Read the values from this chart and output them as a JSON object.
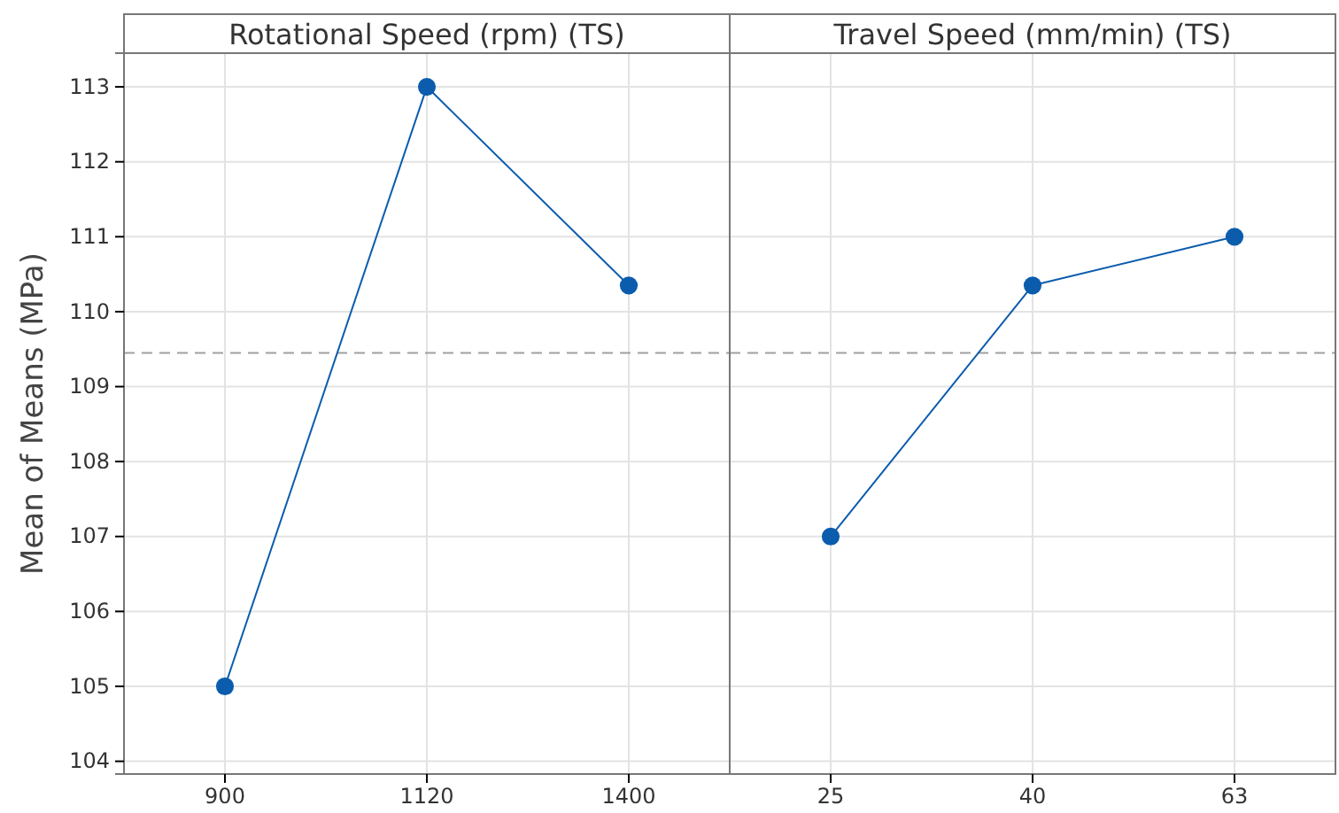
{
  "chart_data": [
    {
      "type": "line",
      "title": "Rotational Speed (rpm) (TS)",
      "ylabel": "Mean of Means (MPa)",
      "categories": [
        "900",
        "1120",
        "1400"
      ],
      "series": [
        {
          "color": "#0b5cad",
          "values": [
            105,
            113,
            110.35
          ]
        }
      ],
      "ylim": [
        103.83,
        113.45
      ],
      "yticks": [
        104,
        105,
        106,
        107,
        108,
        109,
        110,
        111,
        112,
        113
      ],
      "grid": true,
      "marker": "circle",
      "line_style": "solid",
      "ref_lines": [
        {
          "axis": "y",
          "value": 109.45,
          "color": "#a0a0a0",
          "line_style": "dashed"
        }
      ]
    },
    {
      "type": "line",
      "title": "Travel Speed (mm/min) (TS)",
      "categories": [
        "25",
        "40",
        "63"
      ],
      "series": [
        {
          "color": "#0b5cad",
          "values": [
            107,
            110.35,
            111
          ]
        }
      ],
      "ylim": [
        103.83,
        113.45
      ],
      "yticks": [
        104,
        105,
        106,
        107,
        108,
        109,
        110,
        111,
        112,
        113
      ],
      "grid": true,
      "marker": "circle",
      "line_style": "solid",
      "tick_labels": "x",
      "ref_lines": [
        {
          "axis": "y",
          "value": 109.45,
          "color": "#a0a0a0",
          "line_style": "dashed"
        }
      ]
    }
  ]
}
